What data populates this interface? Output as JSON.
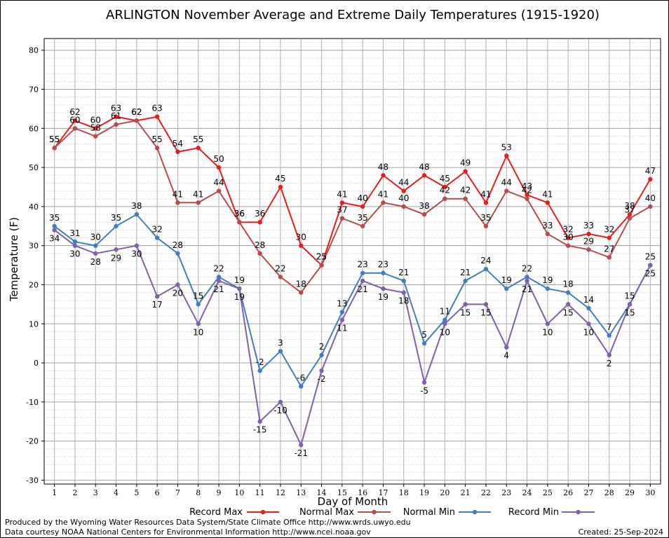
{
  "chart_data": {
    "type": "line",
    "title": "ARLINGTON November Average and Extreme Daily Temperatures (1915-1920)",
    "xlabel": "Day of Month",
    "ylabel": "Temperature (F)",
    "xlim": [
      0.5,
      30.5
    ],
    "ylim": [
      -31,
      83
    ],
    "yticks": [
      -30,
      -20,
      -10,
      0,
      10,
      20,
      30,
      40,
      50,
      60,
      70,
      80
    ],
    "grid": true,
    "legend_position": "bottom",
    "x": [
      1,
      2,
      3,
      4,
      5,
      6,
      7,
      8,
      9,
      10,
      11,
      12,
      13,
      14,
      15,
      16,
      17,
      18,
      19,
      20,
      21,
      22,
      23,
      24,
      25,
      26,
      27,
      28,
      29,
      30
    ],
    "series": [
      {
        "name": "Record Max",
        "color": "#e81c1c",
        "values": [
          55,
          62,
          60,
          63,
          62,
          63,
          54,
          55,
          50,
          36,
          36,
          45,
          30,
          25,
          41,
          40,
          48,
          44,
          48,
          45,
          49,
          41,
          53,
          43,
          41,
          32,
          33,
          32,
          38,
          47
        ]
      },
      {
        "name": "Normal Max",
        "color": "#b84b4b",
        "values": [
          55,
          60,
          58,
          61,
          62,
          55,
          41,
          41,
          44,
          36,
          28,
          22,
          18,
          25,
          37,
          35,
          41,
          40,
          38,
          42,
          42,
          35,
          44,
          42,
          33,
          30,
          29,
          27,
          37,
          40
        ]
      },
      {
        "name": "Normal Min",
        "color": "#3f7fbf",
        "values": [
          35,
          31,
          30,
          35,
          38,
          32,
          28,
          15,
          22,
          19,
          -2,
          3,
          -6,
          2,
          13,
          23,
          23,
          21,
          5,
          11,
          21,
          24,
          19,
          22,
          19,
          18,
          14,
          7,
          15,
          25
        ]
      },
      {
        "name": "Record Min",
        "color": "#8060a8",
        "values": [
          34,
          30,
          28,
          29,
          30,
          17,
          20,
          10,
          21,
          19,
          -15,
          -10,
          -21,
          -2,
          11,
          21,
          19,
          18,
          -5,
          10,
          15,
          15,
          4,
          21,
          10,
          15,
          10,
          2,
          15,
          25
        ]
      }
    ]
  },
  "footer": {
    "produced_by": "Produced by the Wyoming Water Resources Data System/State Climate Office http://www.wrds.uwyo.edu",
    "courtesy": "Data courtesy NOAA National Centers for Environmental Information http://www.ncei.noaa.gov",
    "created": "Created:  25-Sep-2024"
  }
}
